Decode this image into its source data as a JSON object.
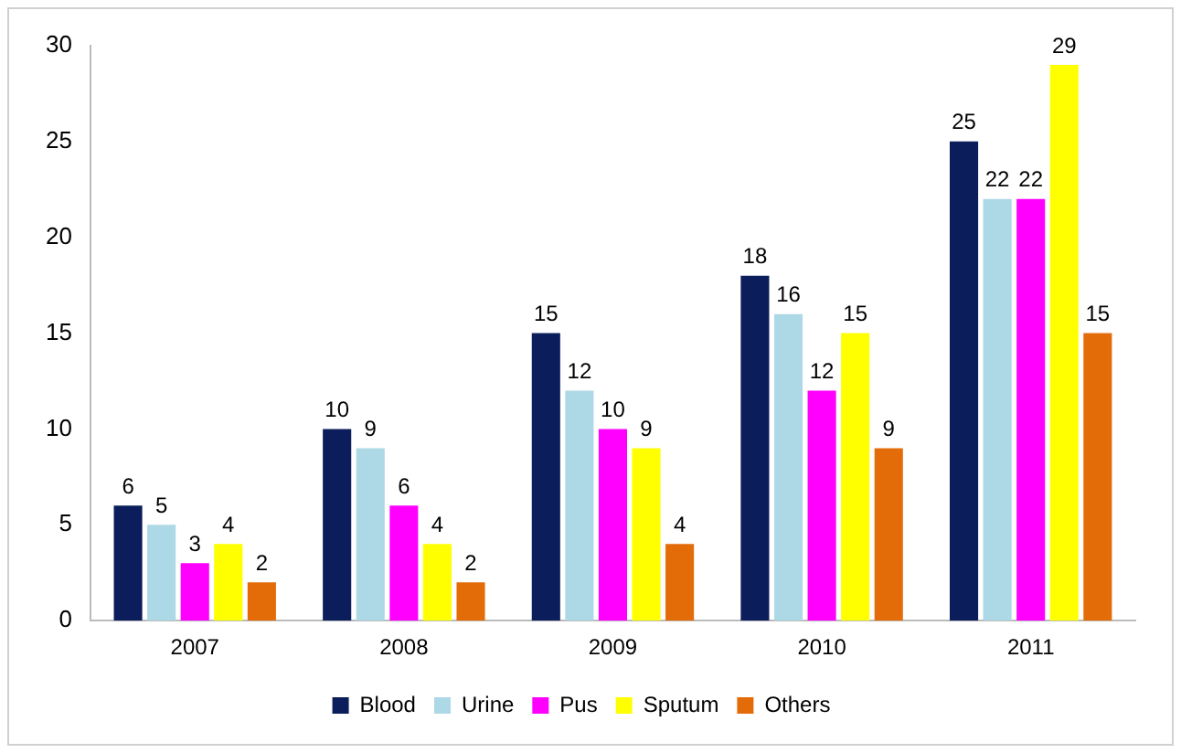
{
  "chart_data": {
    "type": "bar",
    "categories": [
      "2007",
      "2008",
      "2009",
      "2010",
      "2011"
    ],
    "series": [
      {
        "name": "Blood",
        "color": "#0b1e5b",
        "values": [
          6,
          10,
          15,
          18,
          25
        ]
      },
      {
        "name": "Urine",
        "color": "#add8e6",
        "values": [
          5,
          9,
          12,
          16,
          22
        ]
      },
      {
        "name": "Pus",
        "color": "#ff00ff",
        "values": [
          3,
          6,
          10,
          12,
          22
        ]
      },
      {
        "name": "Sputum",
        "color": "#ffff00",
        "values": [
          4,
          4,
          9,
          15,
          29
        ]
      },
      {
        "name": "Others",
        "color": "#e36c09",
        "values": [
          2,
          2,
          4,
          9,
          15
        ]
      }
    ],
    "ylim": [
      0,
      30
    ],
    "yticks": [
      0,
      5,
      10,
      15,
      20,
      25,
      30
    ],
    "grid": false,
    "legend": "bottom",
    "data_labels": true
  }
}
